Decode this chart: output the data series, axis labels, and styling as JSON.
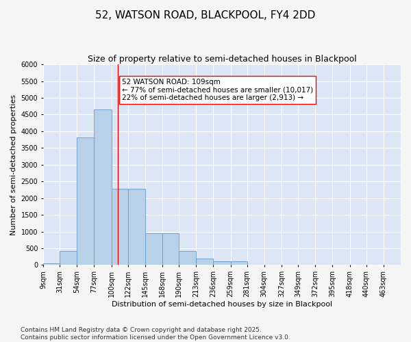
{
  "title": "52, WATSON ROAD, BLACKPOOL, FY4 2DD",
  "subtitle": "Size of property relative to semi-detached houses in Blackpool",
  "xlabel": "Distribution of semi-detached houses by size in Blackpool",
  "ylabel": "Number of semi-detached properties",
  "bin_labels": [
    "9sqm",
    "31sqm",
    "54sqm",
    "77sqm",
    "100sqm",
    "122sqm",
    "145sqm",
    "168sqm",
    "190sqm",
    "213sqm",
    "236sqm",
    "259sqm",
    "281sqm",
    "304sqm",
    "327sqm",
    "349sqm",
    "372sqm",
    "395sqm",
    "418sqm",
    "440sqm",
    "463sqm"
  ],
  "bar_values": [
    50,
    420,
    3820,
    4650,
    2270,
    2270,
    950,
    950,
    420,
    200,
    110,
    110,
    0,
    0,
    0,
    0,
    0,
    0,
    0,
    0,
    0
  ],
  "bar_color": "#b8d0e8",
  "bar_edge_color": "#6699cc",
  "background_color": "#dce6f5",
  "grid_color": "#ffffff",
  "marker_x_label": "100sqm",
  "marker_bin_index": 4,
  "annotation_text": "52 WATSON ROAD: 109sqm\n← 77% of semi-detached houses are smaller (10,017)\n22% of semi-detached houses are larger (2,913) →",
  "ylim": [
    0,
    6000
  ],
  "yticks": [
    0,
    500,
    1000,
    1500,
    2000,
    2500,
    3000,
    3500,
    4000,
    4500,
    5000,
    5500,
    6000
  ],
  "bin_edges": [
    9,
    31,
    54,
    77,
    100,
    122,
    145,
    168,
    190,
    213,
    236,
    259,
    281,
    304,
    327,
    349,
    372,
    395,
    418,
    440,
    463,
    486
  ],
  "footnote": "Contains HM Land Registry data © Crown copyright and database right 2025.\nContains public sector information licensed under the Open Government Licence v3.0.",
  "title_fontsize": 11,
  "subtitle_fontsize": 9,
  "annotation_fontsize": 7.5,
  "axis_label_fontsize": 8,
  "tick_fontsize": 7,
  "footnote_fontsize": 6.5,
  "fig_bg_color": "#f5f5f5"
}
